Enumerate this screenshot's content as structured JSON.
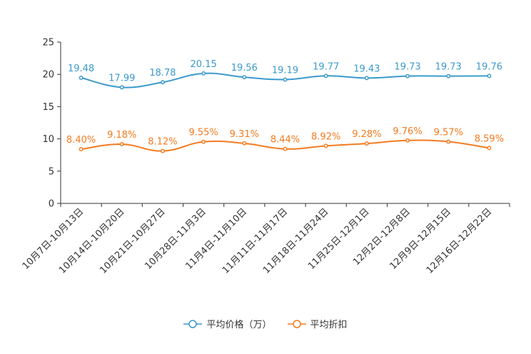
{
  "chart_data": {
    "type": "line",
    "title": "",
    "xlabel": "",
    "ylabel": "",
    "ylim": [
      0,
      25
    ],
    "yticks": [
      0,
      5,
      10,
      15,
      20,
      25
    ],
    "categories": [
      "10月7日-10月13日",
      "10月14日-10月20日",
      "10月21日-10月27日",
      "10月28日-11月3日",
      "11月4日-11月10日",
      "11月11日-11月17日",
      "11月18日-11月24日",
      "11月25日-12月1日",
      "12月2日-12月8日",
      "12月9日-12月15日",
      "12月16日-12月22日"
    ],
    "series": [
      {
        "name": "平均价格（万）",
        "color": "#3c9acd",
        "values": [
          19.48,
          17.99,
          18.78,
          20.15,
          19.56,
          19.19,
          19.77,
          19.43,
          19.73,
          19.73,
          19.76
        ],
        "labels": [
          "19.48",
          "17.99",
          "18.78",
          "20.15",
          "19.56",
          "19.19",
          "19.77",
          "19.43",
          "19.73",
          "19.73",
          "19.76"
        ]
      },
      {
        "name": "平均折扣",
        "color": "#f47b20",
        "values": [
          8.4,
          9.18,
          8.12,
          9.55,
          9.31,
          8.44,
          8.92,
          9.28,
          9.76,
          9.57,
          8.59
        ],
        "labels": [
          "8.40%",
          "9.18%",
          "8.12%",
          "9.55%",
          "9.31%",
          "8.44%",
          "8.92%",
          "9.28%",
          "9.76%",
          "9.57%",
          "8.59%"
        ]
      }
    ],
    "legend_position": "bottom-center"
  }
}
